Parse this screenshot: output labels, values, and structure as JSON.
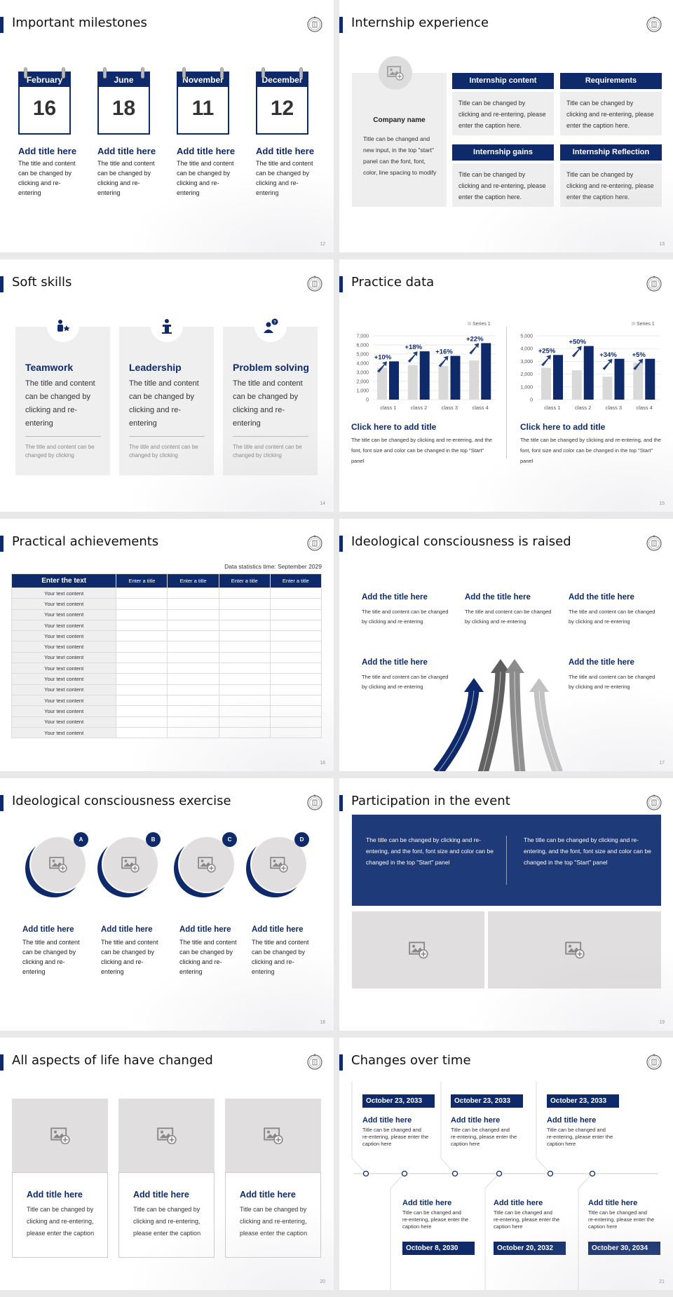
{
  "colors": {
    "navy": "#0e2a6b",
    "light_gray": "#eeeeee",
    "bar_gray": "#d9d9d9"
  },
  "slides": [
    {
      "page": "12",
      "title": "Important milestones",
      "items": [
        {
          "month": "February",
          "day": "16",
          "title": "Add title here",
          "text": "The title and content can be changed by clicking and re-entering"
        },
        {
          "month": "June",
          "day": "18",
          "title": "Add title here",
          "text": "The title and content can be changed by clicking and re-entering"
        },
        {
          "month": "November",
          "day": "11",
          "title": "Add title here",
          "text": "The title and content can be changed by clicking and re-entering"
        },
        {
          "month": "December",
          "day": "12",
          "title": "Add title here",
          "text": "The title and content can be changed by clicking and re-entering"
        }
      ]
    },
    {
      "page": "13",
      "title": "Internship experience",
      "company": {
        "name": "Company name",
        "text": "Title can be changed and new input, in the top \"start\" panel can the font, font, color, line spacing to modify",
        "icon": "image-placeholder-icon"
      },
      "cards": [
        {
          "header": "Internship content",
          "text": "Title can be changed by clicking and re-entering, please enter the caption here."
        },
        {
          "header": "Requirements",
          "text": "Title can be changed by clicking and re-entering, please enter the caption here."
        },
        {
          "header": "Internship gains",
          "text": "Title can be changed by clicking and re-entering, please enter the caption here."
        },
        {
          "header": "Internship Reflection",
          "text": "Title can be changed by clicking and re-entering, please enter the caption here."
        }
      ]
    },
    {
      "page": "14",
      "title": "Soft skills",
      "items": [
        {
          "icon": "teamwork-icon",
          "title": "Teamwork",
          "text": "The title and content can be changed by clicking and re-entering",
          "note": "The title and content can be changed by clicking"
        },
        {
          "icon": "leadership-podium-icon",
          "title": "Leadership",
          "text": "The title and content can be changed by clicking and re-entering",
          "note": "The title and content can be changed by clicking"
        },
        {
          "icon": "problem-solving-icon",
          "title": "Problem solving",
          "text": "The title and content can be changed by clicking and re-entering",
          "note": "The title and content can be changed by clicking"
        }
      ]
    },
    {
      "page": "15",
      "title": "Practice data",
      "panels": [
        {
          "title": "Click here to add title",
          "text": "The title can be changed by clicking and re-entering, and the font, font size and color can be changed in the top \"Start\" panel"
        },
        {
          "title": "Click here to add title",
          "text": "The title can be changed by clicking and re-entering, and the font, font size and color can be changed in the top \"Start\" panel"
        }
      ]
    },
    {
      "page": "16",
      "title": "Practical achievements",
      "caption": "Data statistics time: September 2029",
      "headers": [
        "Enter the text",
        "Enter a title",
        "Enter a title",
        "Enter a title",
        "Enter a title"
      ],
      "rows": [
        "Your text content",
        "Your text content",
        "Your text content",
        "Your text content",
        "Your text content",
        "Your text content",
        "Your text content",
        "Your text content",
        "Your text content",
        "Your text content",
        "Your text content",
        "Your text content",
        "Your text content",
        "Your text content"
      ]
    },
    {
      "page": "17",
      "title": "Ideological consciousness is raised",
      "items": [
        {
          "title": "Add the title here",
          "text": "The title and content can be changed by clicking and re-entering"
        },
        {
          "title": "Add the title here",
          "text": "The title and content can be changed by clicking and re-entering"
        },
        {
          "title": "Add the title here",
          "text": "The title and content can be changed by clicking and re-entering"
        },
        {
          "title": "Add the title here",
          "text": "The title and content can be changed by clicking and re-entering"
        },
        {
          "title": "Add the title here",
          "text": "The title and content can be changed by clicking and re-entering"
        }
      ]
    },
    {
      "page": "18",
      "title": "Ideological consciousness exercise",
      "items": [
        {
          "badge": "A",
          "title": "Add title here",
          "text": "The title and content can be changed by clicking and re-entering"
        },
        {
          "badge": "B",
          "title": "Add title here",
          "text": "The title and content can be changed by clicking and re-entering"
        },
        {
          "badge": "C",
          "title": "Add title here",
          "text": "The title and content can be changed by clicking and re-entering"
        },
        {
          "badge": "D",
          "title": "Add title here",
          "text": "The title and content can be changed by clicking and re-entering"
        }
      ]
    },
    {
      "page": "19",
      "title": "Participation in the event",
      "texts": [
        "The title can be changed by clicking and re-entering, and the font, font size and color can be changed in the top \"Start\" panel",
        "The title can be changed by clicking and re-entering, and the font, font size and color can be changed in the top \"Start\" panel"
      ]
    },
    {
      "page": "20",
      "title": "All aspects of life have changed",
      "items": [
        {
          "title": "Add title here",
          "text": "Title can be changed by clicking and re-entering, please enter the caption"
        },
        {
          "title": "Add title here",
          "text": "Title can be changed by clicking and re-entering, please enter the caption"
        },
        {
          "title": "Add title here",
          "text": "Title can be changed by clicking and re-entering, please enter the caption"
        }
      ]
    },
    {
      "page": "21",
      "title": "Changes over time",
      "top": [
        {
          "date": "October 23, 2033",
          "title": "Add title here",
          "text": "Title can be changed and re-entering, please enter the caption here"
        },
        {
          "date": "October 23, 2033",
          "title": "Add title here",
          "text": "Title can be changed and re-entering, please enter the caption here"
        },
        {
          "date": "October 23, 2033",
          "title": "Add title here",
          "text": "Title can be changed and re-entering, please enter the caption here"
        }
      ],
      "bottom": [
        {
          "date": "October 8, 2030",
          "title": "Add title here",
          "text": "Title can be changed and re-entering, please enter the caption here"
        },
        {
          "date": "October 20, 2032",
          "title": "Add title here",
          "text": "Title can be changed and re-entering, please enter the caption here"
        },
        {
          "date": "October 30, 2034",
          "title": "Add title here",
          "text": "Title can be changed and re-entering, please enter the caption here"
        }
      ]
    }
  ],
  "chart_data": [
    {
      "type": "bar",
      "categories": [
        "class 1",
        "class 2",
        "class 3",
        "class 4"
      ],
      "series": [
        {
          "name": "Series 1",
          "values": [
            3500,
            3800,
            3700,
            4300
          ],
          "color": "#d9d9d9"
        },
        {
          "values": [
            4200,
            5300,
            4800,
            6200
          ],
          "color": "#0e2a6b"
        }
      ],
      "annotations": [
        "+10%",
        "+18%",
        "+16%",
        "+22%"
      ],
      "ylim": [
        0,
        7000
      ],
      "yticks": [
        "0",
        "1,000",
        "2,000",
        "3,000",
        "4,000",
        "5,000",
        "6,000",
        "7,000"
      ],
      "grid": true,
      "legend": "top-right"
    },
    {
      "type": "bar",
      "categories": [
        "class 1",
        "class 2",
        "class 3",
        "class 4"
      ],
      "series": [
        {
          "name": "Series 1",
          "values": [
            2500,
            2300,
            1800,
            2900
          ],
          "color": "#d9d9d9"
        },
        {
          "values": [
            3500,
            4200,
            3200,
            3200
          ],
          "color": "#0e2a6b"
        }
      ],
      "annotations": [
        "+25%",
        "+50%",
        "+34%",
        "+5%"
      ],
      "ylim": [
        0,
        5000
      ],
      "yticks": [
        "0",
        "1,000",
        "2,000",
        "3,000",
        "4,000",
        "5,000"
      ],
      "grid": true,
      "legend": "top-right"
    }
  ]
}
